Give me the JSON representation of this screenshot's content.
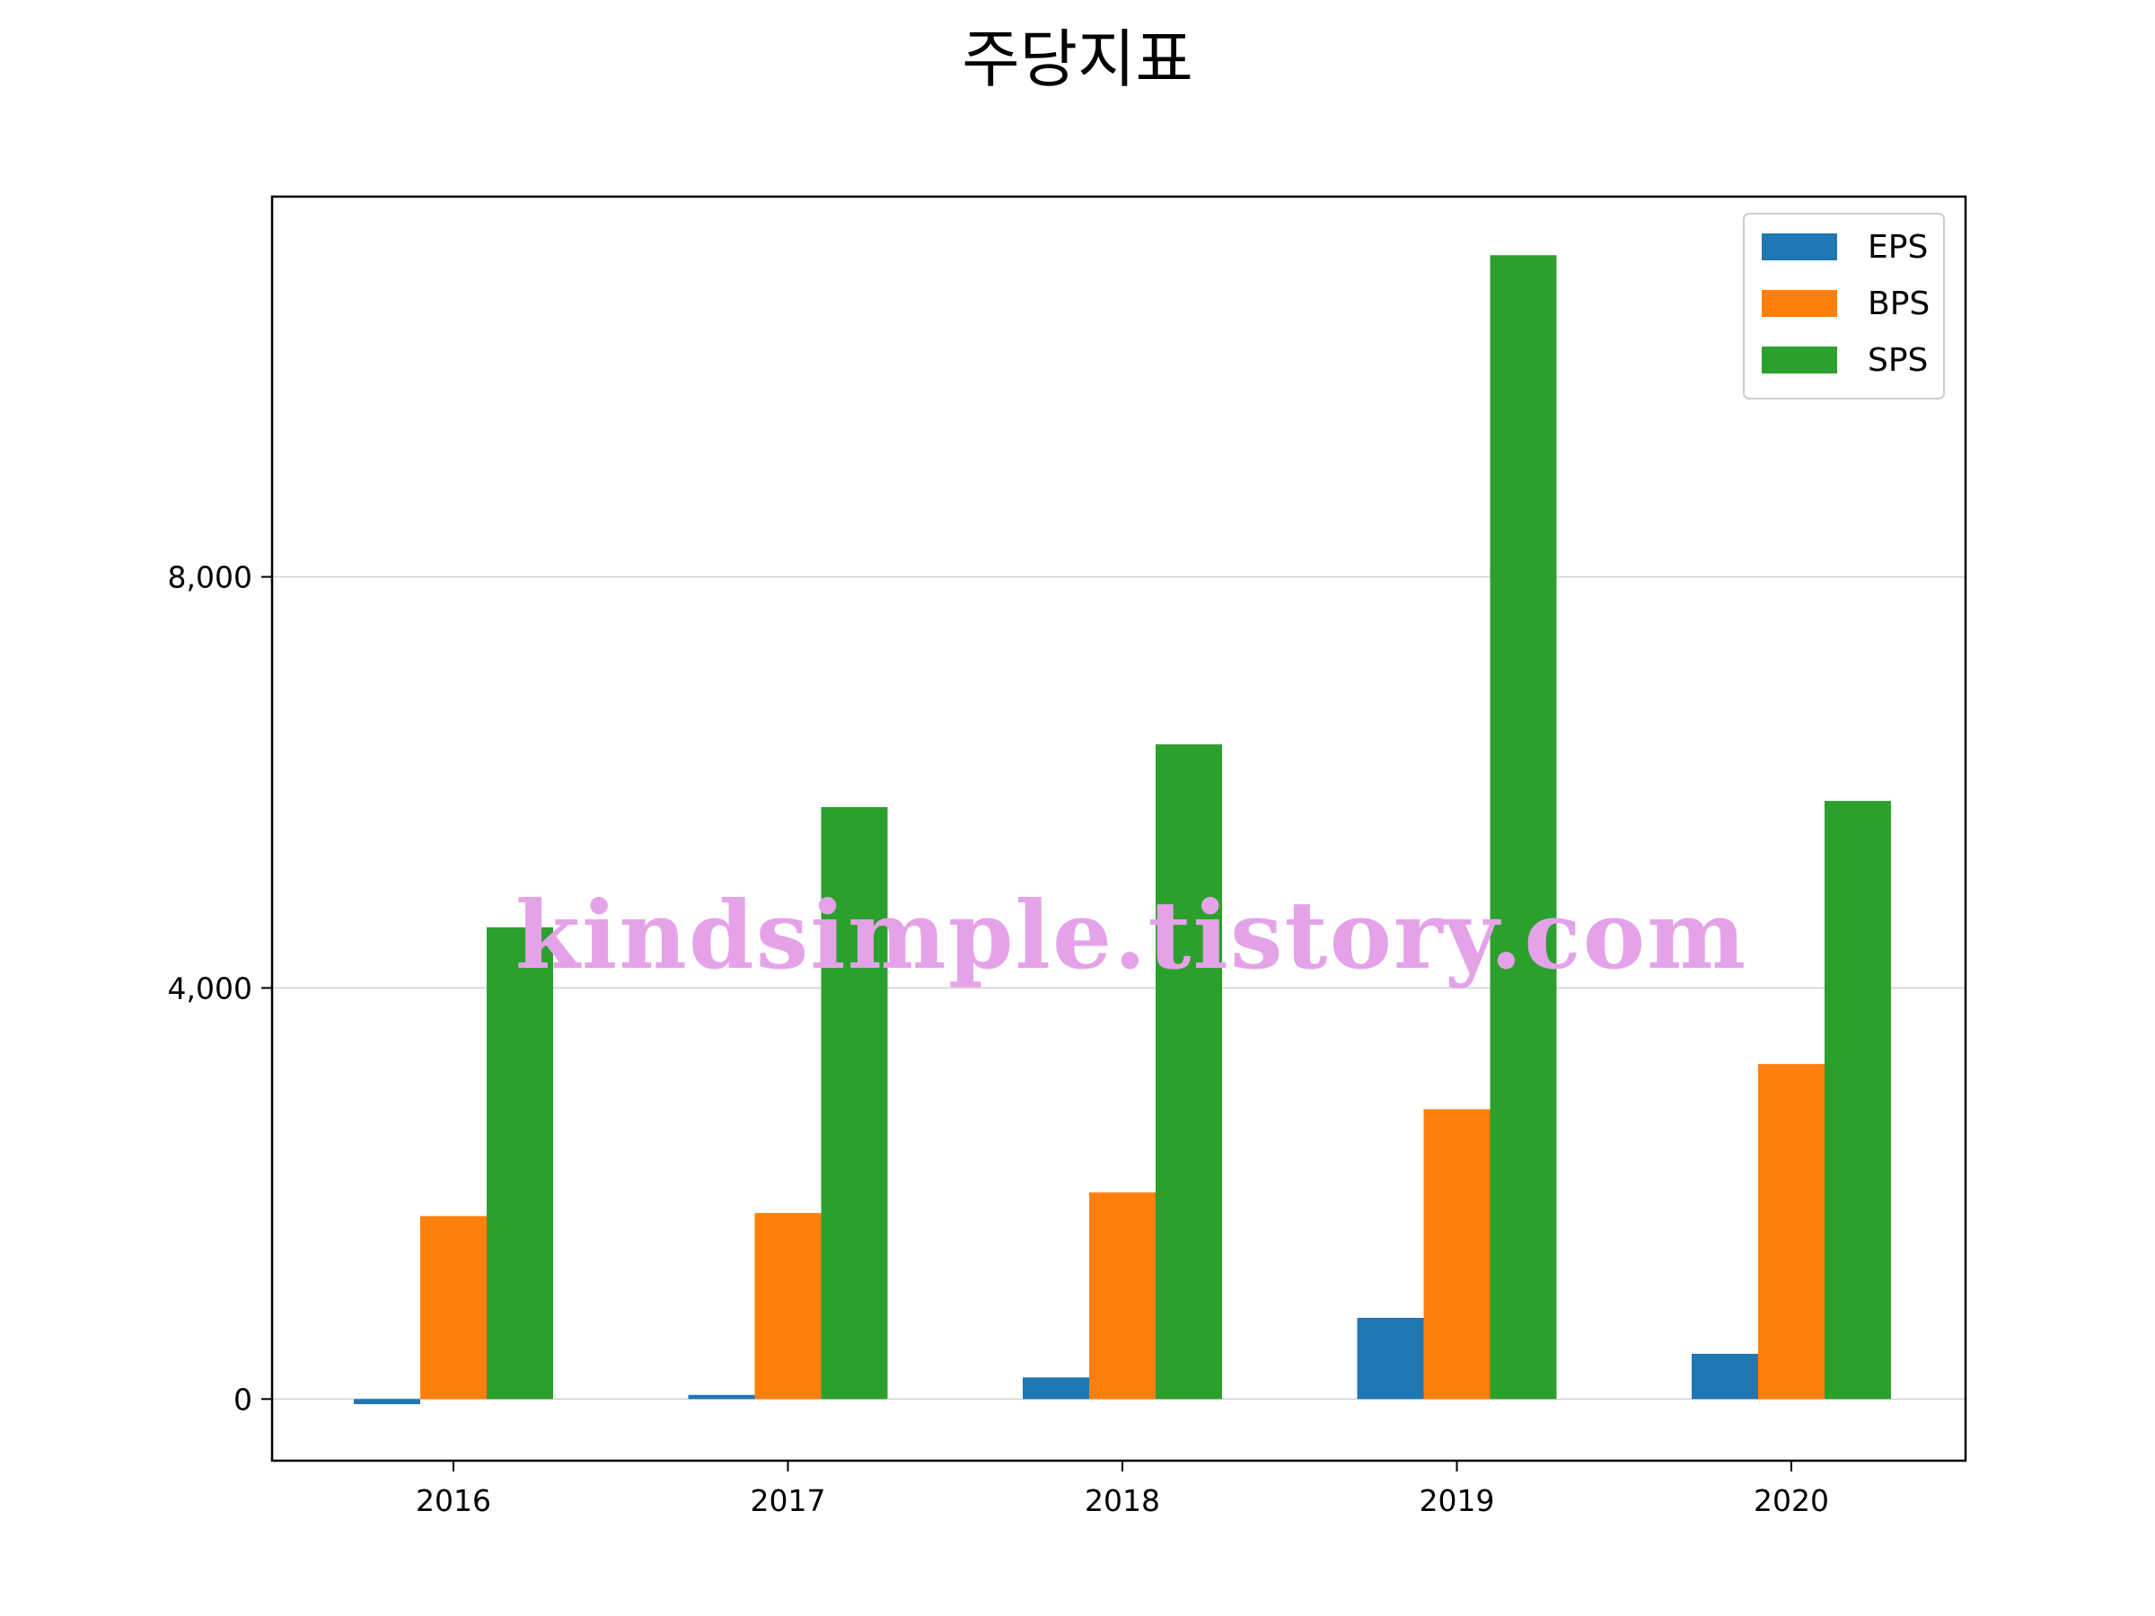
{
  "chart_data": {
    "type": "bar",
    "title": "주당지표",
    "xlabel": "",
    "ylabel": "",
    "categories": [
      "2016",
      "2017",
      "2018",
      "2019",
      "2020"
    ],
    "series": [
      {
        "name": "EPS",
        "color": "#1f77b4",
        "values": [
          -50,
          40,
          210,
          790,
          440
        ]
      },
      {
        "name": "BPS",
        "color": "#ff7f0e",
        "values": [
          1780,
          1810,
          2010,
          2820,
          3260
        ]
      },
      {
        "name": "SPS",
        "color": "#2ca02c",
        "values": [
          4590,
          5760,
          6370,
          11130,
          5820
        ]
      }
    ],
    "ylim": [
      -600,
      11700
    ],
    "yticks": [
      0,
      4000,
      8000
    ],
    "ytick_labels": [
      "0",
      "4,000",
      "8,000"
    ],
    "grid": "y",
    "legend_position": "top-right"
  },
  "watermark": "kindsimple.tistory.com"
}
